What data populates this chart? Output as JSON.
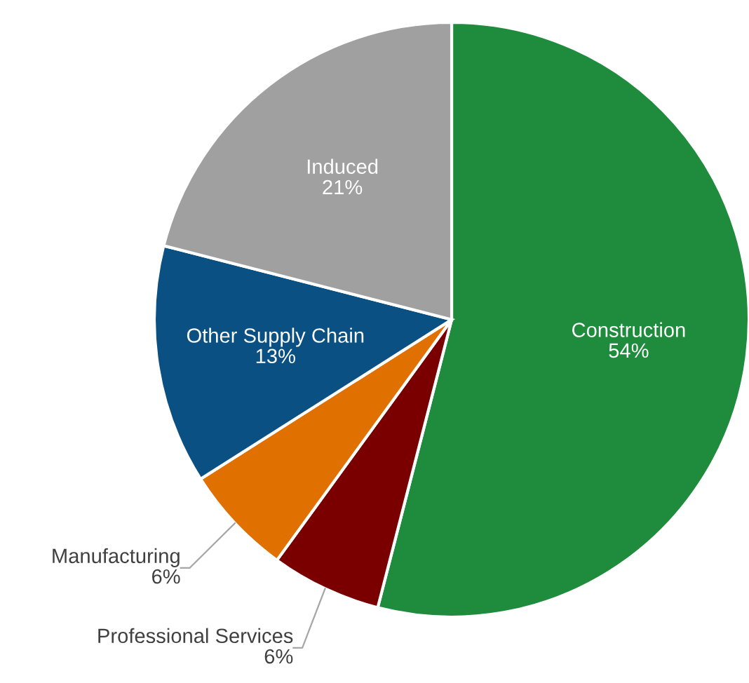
{
  "chart_data": {
    "type": "pie",
    "categories": [
      "Construction",
      "Professional Services",
      "Manufacturing",
      "Other Supply Chain",
      "Induced"
    ],
    "values": [
      54,
      6,
      6,
      13,
      21
    ],
    "colors": [
      "#1e8c3c",
      "#7a0000",
      "#e07000",
      "#0b5083",
      "#a0a0a0"
    ],
    "value_labels": [
      "54%",
      "6%",
      "6%",
      "13%",
      "21%"
    ]
  }
}
